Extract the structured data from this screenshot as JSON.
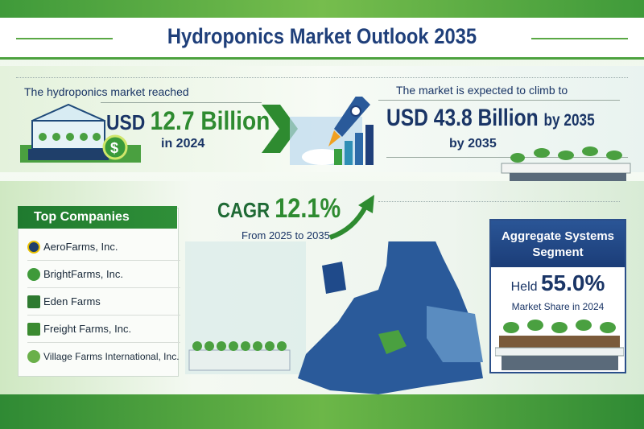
{
  "title": "Hydroponics Market Outlook 2035",
  "current": {
    "lead": "The hydroponics market reached",
    "prefix": "USD",
    "value": "12.7 Billion",
    "year": "in 2024"
  },
  "forecast": {
    "lead": "The market is expected to climb to",
    "prefix": "USD",
    "value": "43.8 Billion",
    "suffix": "by 2035",
    "year": "by 2035"
  },
  "cagr": {
    "label": "CAGR",
    "value": "12.1%",
    "period": "From 2025 to 2035"
  },
  "companies": {
    "heading": "Top Companies",
    "items": [
      {
        "name": "AeroFarms, Inc.",
        "icon": "aerofarms-logo-icon"
      },
      {
        "name": "BrightFarms, Inc.",
        "icon": "leaf-icon"
      },
      {
        "name": "Eden Farms",
        "icon": "eden-logo-icon"
      },
      {
        "name": "Freight Farms, Inc.",
        "icon": "container-icon"
      },
      {
        "name": "Village Farms International, Inc.",
        "icon": "sprout-icon"
      }
    ]
  },
  "segment": {
    "title_line1": "Aggregate Systems",
    "title_line2": "Segment",
    "held": "Held",
    "value": "55.0%",
    "caption": "Market Share in 2024"
  },
  "colors": {
    "navy": "#1a3566",
    "green": "#2e8b30",
    "blue": "#2a5596"
  }
}
